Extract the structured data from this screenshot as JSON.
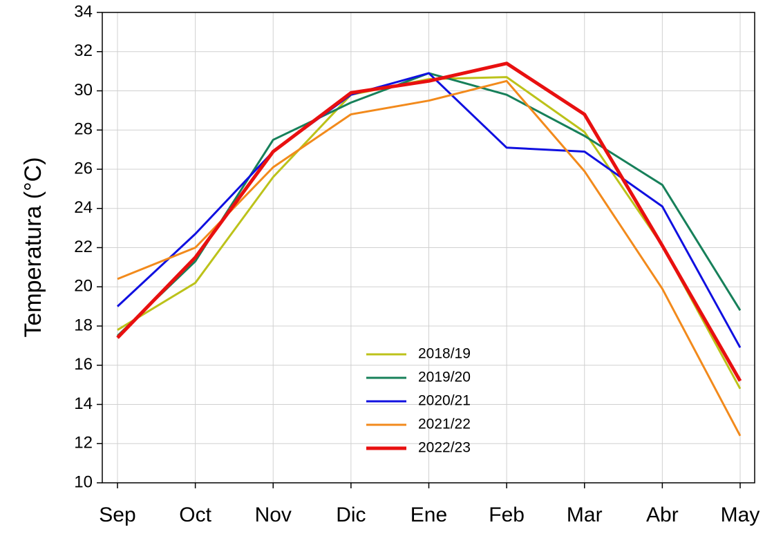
{
  "chart_data": {
    "type": "line",
    "y_label": "Temperatura (°C)",
    "categories": [
      "Sep",
      "Oct",
      "Nov",
      "Dic",
      "Ene",
      "Feb",
      "Mar",
      "Abr",
      "May"
    ],
    "series": [
      {
        "name": "2018/19",
        "color": "#bcc21a",
        "width": 3,
        "values": [
          17.8,
          20.2,
          25.6,
          29.8,
          30.6,
          30.7,
          27.9,
          22.1,
          14.8
        ]
      },
      {
        "name": "2019/20",
        "color": "#17805a",
        "width": 3,
        "values": [
          17.5,
          21.3,
          27.5,
          29.4,
          30.9,
          29.8,
          27.7,
          25.2,
          18.8
        ]
      },
      {
        "name": "2020/21",
        "color": "#1010e0",
        "width": 3,
        "values": [
          19.0,
          22.7,
          26.9,
          29.8,
          30.9,
          27.1,
          26.9,
          24.1,
          16.9
        ]
      },
      {
        "name": "2021/22",
        "color": "#f28a1c",
        "width": 3,
        "values": [
          20.4,
          22.0,
          26.1,
          28.8,
          29.5,
          30.5,
          25.9,
          19.9,
          12.4
        ]
      },
      {
        "name": "2022/23",
        "color": "#e81010",
        "width": 5,
        "values": [
          17.4,
          21.5,
          26.9,
          29.9,
          30.5,
          31.4,
          28.8,
          22.1,
          15.2
        ]
      }
    ],
    "ylim": [
      10,
      34
    ],
    "yticks": [
      10,
      12,
      14,
      16,
      18,
      20,
      22,
      24,
      26,
      28,
      30,
      32,
      34
    ],
    "grid": true,
    "legend": "lower center"
  }
}
